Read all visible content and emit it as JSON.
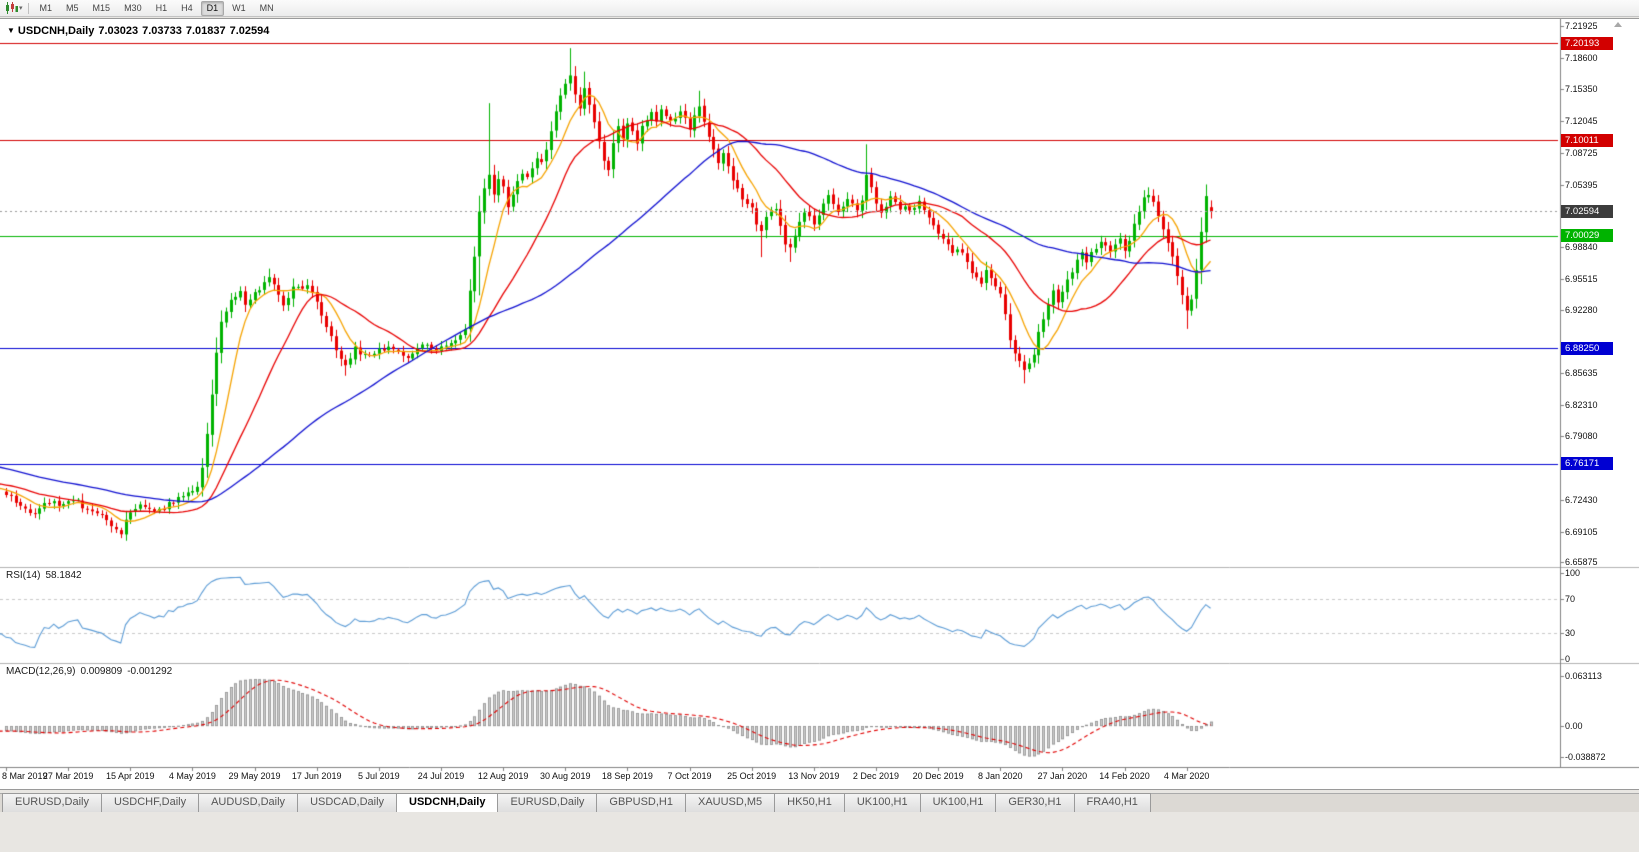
{
  "toolbar": {
    "timeframes": [
      "M1",
      "M5",
      "M15",
      "M30",
      "H1",
      "H4",
      "D1",
      "W1",
      "MN"
    ],
    "active_timeframe": "D1",
    "chart_type_icon": "candlestick-chart-icon",
    "dropdown_icon": "▾"
  },
  "chart": {
    "symbol_period": "USDCNH,Daily",
    "open": "7.03023",
    "high": "7.03733",
    "low": "7.01837",
    "close": "7.02594",
    "menu_icon": "▼"
  },
  "price_axis": {
    "ticks": [
      {
        "label": "7.21925",
        "value": 7.21925
      },
      {
        "label": "7.18600",
        "value": 7.186
      },
      {
        "label": "7.15350",
        "value": 7.1535
      },
      {
        "label": "7.12045",
        "value": 7.12045
      },
      {
        "label": "7.08725",
        "value": 7.08725
      },
      {
        "label": "7.05395",
        "value": 7.05395
      },
      {
        "label": "6.98840",
        "value": 6.9884
      },
      {
        "label": "6.95515",
        "value": 6.95515
      },
      {
        "label": "6.92280",
        "value": 6.9228
      },
      {
        "label": "6.85635",
        "value": 6.85635
      },
      {
        "label": "6.82310",
        "value": 6.8231
      },
      {
        "label": "6.79080",
        "value": 6.7908
      },
      {
        "label": "6.72430",
        "value": 6.7243
      },
      {
        "label": "6.69105",
        "value": 6.69105
      },
      {
        "label": "6.65875",
        "value": 6.65875
      }
    ]
  },
  "current_price": {
    "label": "7.02594",
    "value": 7.02594,
    "tag_color": "#3c3c3c",
    "line_color": "#9a9a9a"
  },
  "date_axis": {
    "labels": [
      "8 Mar 2019",
      "27 Mar 2019",
      "15 Apr 2019",
      "4 May 2019",
      "29 May 2019",
      "17 Jun 2019",
      "5 Jul 2019",
      "24 Jul 2019",
      "12 Aug 2019",
      "30 Aug 2019",
      "18 Sep 2019",
      "7 Oct 2019",
      "25 Oct 2019",
      "13 Nov 2019",
      "2 Dec 2019",
      "20 Dec 2019",
      "8 Jan 2020",
      "27 Jan 2020",
      "14 Feb 2020",
      "4 Mar 2020"
    ],
    "candles_per_label": 13
  },
  "rsi": {
    "label": "RSI(14)",
    "value": "58.1842",
    "period": 14,
    "levels": [
      70,
      30
    ],
    "axis_labels": [
      {
        "label": "100",
        "value": 100
      },
      {
        "label": "70",
        "value": 70
      },
      {
        "label": "30",
        "value": 30
      },
      {
        "label": "0",
        "value": 0
      }
    ],
    "line_color": "#5b9bd5",
    "level_color": "#c8c8c8"
  },
  "macd": {
    "label": "MACD(12,26,9)",
    "value_main": "0.009809",
    "value_signal": "-0.001292",
    "fast": 12,
    "slow": 26,
    "signal": 9,
    "axis_labels": [
      {
        "label": "0.063113",
        "value": 0.063113
      },
      {
        "label": "0.00",
        "value": 0
      },
      {
        "label": "-0.038872",
        "value": -0.038872
      }
    ],
    "hist_fill": "#cccccc",
    "hist_stroke": "#909090",
    "signal_color": "#e00000"
  },
  "tabs": [
    {
      "label": "EURUSD,Daily",
      "active": false
    },
    {
      "label": "USDCHF,Daily",
      "active": false
    },
    {
      "label": "AUDUSD,Daily",
      "active": false
    },
    {
      "label": "USDCAD,Daily",
      "active": false
    },
    {
      "label": "USDCNH,Daily",
      "active": true
    },
    {
      "label": "EURUSD,Daily",
      "active": false
    },
    {
      "label": "GBPUSD,H1",
      "active": false
    },
    {
      "label": "XAUUSD,M5",
      "active": false
    },
    {
      "label": "HK50,H1",
      "active": false
    },
    {
      "label": "UK100,H1",
      "active": false
    },
    {
      "label": "UK100,H1",
      "active": false
    },
    {
      "label": "GER30,H1",
      "active": false
    },
    {
      "label": "FRA40,H1",
      "active": false
    }
  ],
  "chart_data": {
    "type": "candlestick",
    "symbol": "USDCNH",
    "timeframe": "Daily",
    "up_color": "#00b300",
    "down_color": "#e80000",
    "last_candle": {
      "o": 7.03023,
      "h": 7.03733,
      "l": 7.01837,
      "c": 7.02594
    },
    "levels": [
      {
        "price": 7.20193,
        "label": "7.20193",
        "color": "#d20000",
        "name": "resistance-upper"
      },
      {
        "price": 7.10011,
        "label": "7.10011",
        "color": "#d20000",
        "name": "resistance"
      },
      {
        "price": 7.00029,
        "label": "7.00029",
        "color": "#00b300",
        "name": "level-7-00"
      },
      {
        "price": 6.8825,
        "label": "6.88250",
        "color": "#0000d2",
        "name": "support"
      },
      {
        "price": 6.76171,
        "label": "6.76171",
        "color": "#0000d2",
        "name": "support-lower"
      }
    ],
    "moving_averages": [
      {
        "period": 8,
        "color": "#f5a302"
      },
      {
        "period": 21,
        "color": "#e80000"
      },
      {
        "period": 55,
        "color": "#0f0fd0"
      }
    ],
    "first_index": -60,
    "last_index": 252,
    "seed": 11,
    "noise": 0.006,
    "close_waypoints": [
      [
        -60,
        6.8
      ],
      [
        -40,
        6.77
      ],
      [
        -25,
        6.75
      ],
      [
        -12,
        6.742
      ],
      [
        -4,
        6.736
      ],
      [
        0,
        6.73
      ],
      [
        3,
        6.718
      ],
      [
        6,
        6.711
      ],
      [
        9,
        6.722
      ],
      [
        12,
        6.717
      ],
      [
        14,
        6.726
      ],
      [
        17,
        6.713
      ],
      [
        20,
        6.706
      ],
      [
        23,
        6.694
      ],
      [
        24,
        6.69
      ],
      [
        26,
        6.712
      ],
      [
        29,
        6.719
      ],
      [
        32,
        6.713
      ],
      [
        35,
        6.723
      ],
      [
        38,
        6.731
      ],
      [
        40,
        6.737
      ],
      [
        41,
        6.757
      ],
      [
        42,
        6.795
      ],
      [
        43,
        6.836
      ],
      [
        44,
        6.878
      ],
      [
        45,
        6.908
      ],
      [
        46,
        6.922
      ],
      [
        47,
        6.936
      ],
      [
        49,
        6.94
      ],
      [
        50,
        6.927
      ],
      [
        52,
        6.943
      ],
      [
        54,
        6.949
      ],
      [
        55,
        6.956
      ],
      [
        57,
        6.94
      ],
      [
        58,
        6.929
      ],
      [
        60,
        6.947
      ],
      [
        62,
        6.945
      ],
      [
        63,
        6.95
      ],
      [
        65,
        6.932
      ],
      [
        67,
        6.906
      ],
      [
        69,
        6.881
      ],
      [
        71,
        6.867
      ],
      [
        73,
        6.883
      ],
      [
        75,
        6.875
      ],
      [
        78,
        6.88
      ],
      [
        80,
        6.885
      ],
      [
        82,
        6.877
      ],
      [
        84,
        6.873
      ],
      [
        86,
        6.882
      ],
      [
        88,
        6.887
      ],
      [
        90,
        6.88
      ],
      [
        92,
        6.884
      ],
      [
        94,
        6.89
      ],
      [
        96,
        6.901
      ],
      [
        97,
        6.945
      ],
      [
        98,
        6.979
      ],
      [
        99,
        7.024
      ],
      [
        100,
        7.052
      ],
      [
        101,
        7.063
      ],
      [
        102,
        7.046
      ],
      [
        103,
        7.06
      ],
      [
        104,
        7.049
      ],
      [
        105,
        7.03
      ],
      [
        106,
        7.043
      ],
      [
        107,
        7.057
      ],
      [
        108,
        7.065
      ],
      [
        109,
        7.059
      ],
      [
        110,
        7.073
      ],
      [
        111,
        7.082
      ],
      [
        112,
        7.078
      ],
      [
        113,
        7.09
      ],
      [
        114,
        7.11
      ],
      [
        115,
        7.129
      ],
      [
        116,
        7.146
      ],
      [
        117,
        7.159
      ],
      [
        118,
        7.167
      ],
      [
        119,
        7.15
      ],
      [
        120,
        7.135
      ],
      [
        121,
        7.152
      ],
      [
        122,
        7.14
      ],
      [
        123,
        7.118
      ],
      [
        124,
        7.098
      ],
      [
        125,
        7.08
      ],
      [
        126,
        7.072
      ],
      [
        127,
        7.095
      ],
      [
        128,
        7.113
      ],
      [
        129,
        7.104
      ],
      [
        130,
        7.119
      ],
      [
        131,
        7.109
      ],
      [
        132,
        7.097
      ],
      [
        133,
        7.113
      ],
      [
        134,
        7.123
      ],
      [
        135,
        7.13
      ],
      [
        136,
        7.122
      ],
      [
        137,
        7.135
      ],
      [
        138,
        7.127
      ],
      [
        139,
        7.118
      ],
      [
        140,
        7.125
      ],
      [
        141,
        7.132
      ],
      [
        142,
        7.122
      ],
      [
        143,
        7.113
      ],
      [
        144,
        7.128
      ],
      [
        145,
        7.137
      ],
      [
        146,
        7.122
      ],
      [
        147,
        7.105
      ],
      [
        148,
        7.09
      ],
      [
        149,
        7.079
      ],
      [
        150,
        7.084
      ],
      [
        151,
        7.073
      ],
      [
        152,
        7.059
      ],
      [
        153,
        7.05
      ],
      [
        154,
        7.04
      ],
      [
        155,
        7.033
      ],
      [
        156,
        7.028
      ],
      [
        157,
        7.015
      ],
      [
        158,
        7.004
      ],
      [
        159,
        7.019
      ],
      [
        160,
        7.03
      ],
      [
        161,
        7.027
      ],
      [
        162,
        7.009
      ],
      [
        163,
        6.994
      ],
      [
        164,
        6.987
      ],
      [
        165,
        6.999
      ],
      [
        166,
        7.013
      ],
      [
        167,
        7.027
      ],
      [
        168,
        7.019
      ],
      [
        169,
        7.01
      ],
      [
        170,
        7.022
      ],
      [
        171,
        7.033
      ],
      [
        172,
        7.042
      ],
      [
        173,
        7.035
      ],
      [
        174,
        7.027
      ],
      [
        175,
        7.032
      ],
      [
        176,
        7.04
      ],
      [
        177,
        7.033
      ],
      [
        178,
        7.029
      ],
      [
        179,
        7.037
      ],
      [
        180,
        7.063
      ],
      [
        181,
        7.049
      ],
      [
        182,
        7.035
      ],
      [
        183,
        7.027
      ],
      [
        184,
        7.032
      ],
      [
        185,
        7.039
      ],
      [
        186,
        7.033
      ],
      [
        187,
        7.027
      ],
      [
        188,
        7.032
      ],
      [
        189,
        7.025
      ],
      [
        190,
        7.03
      ],
      [
        191,
        7.035
      ],
      [
        192,
        7.029
      ],
      [
        193,
        7.022
      ],
      [
        194,
        7.014
      ],
      [
        195,
        7.004
      ],
      [
        196,
        6.997
      ],
      [
        197,
        6.989
      ],
      [
        198,
        6.982
      ],
      [
        199,
        6.989
      ],
      [
        200,
        6.98
      ],
      [
        201,
        6.97
      ],
      [
        202,
        6.963
      ],
      [
        203,
        6.957
      ],
      [
        204,
        6.949
      ],
      [
        205,
        6.963
      ],
      [
        206,
        6.957
      ],
      [
        207,
        6.949
      ],
      [
        208,
        6.94
      ],
      [
        209,
        6.917
      ],
      [
        210,
        6.894
      ],
      [
        211,
        6.88
      ],
      [
        212,
        6.872
      ],
      [
        213,
        6.86
      ],
      [
        214,
        6.869
      ],
      [
        215,
        6.878
      ],
      [
        216,
        6.897
      ],
      [
        217,
        6.913
      ],
      [
        218,
        6.93
      ],
      [
        219,
        6.945
      ],
      [
        220,
        6.932
      ],
      [
        221,
        6.942
      ],
      [
        222,
        6.953
      ],
      [
        223,
        6.964
      ],
      [
        224,
        6.976
      ],
      [
        225,
        6.983
      ],
      [
        226,
        6.975
      ],
      [
        227,
        6.982
      ],
      [
        228,
        6.989
      ],
      [
        229,
        6.997
      ],
      [
        230,
        6.99
      ],
      [
        231,
        6.982
      ],
      [
        232,
        6.989
      ],
      [
        233,
        6.995
      ],
      [
        234,
        6.987
      ],
      [
        235,
        6.997
      ],
      [
        236,
        7.013
      ],
      [
        237,
        7.027
      ],
      [
        238,
        7.038
      ],
      [
        239,
        7.045
      ],
      [
        240,
        7.035
      ],
      [
        241,
        7.023
      ],
      [
        242,
        7.009
      ],
      [
        243,
        6.993
      ],
      [
        244,
        6.977
      ],
      [
        245,
        6.959
      ],
      [
        246,
        6.938
      ],
      [
        247,
        6.925
      ],
      [
        248,
        6.931
      ],
      [
        249,
        6.962
      ],
      [
        250,
        7.004
      ],
      [
        251,
        7.041
      ],
      [
        252,
        7.02594
      ]
    ],
    "high_overrides": {
      "55": 6.966,
      "101": 7.139,
      "118": 7.1965,
      "121": 7.172,
      "145": 7.152,
      "180": 7.096,
      "239": 7.051,
      "251": 7.054
    },
    "low_overrides": {
      "24": 6.687,
      "71": 6.854,
      "99": 6.938,
      "158": 6.978,
      "164": 6.973,
      "213": 6.846,
      "247": 6.903
    }
  }
}
